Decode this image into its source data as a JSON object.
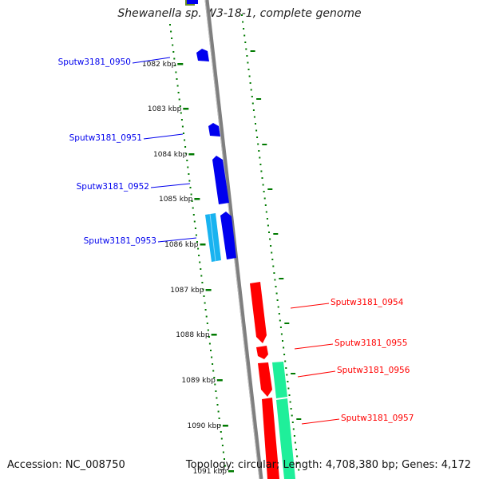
{
  "title": "Shewanella sp. W3-18-1, complete genome",
  "footer": {
    "accession": "Accession: NC_008750",
    "summary": "Topology: circular; Length: 4,708,380 bp; Genes: 4,172"
  },
  "ticks": [
    {
      "label": "1082 kbp"
    },
    {
      "label": "1083 kbp"
    },
    {
      "label": "1084 kbp"
    },
    {
      "label": "1085 kbp"
    },
    {
      "label": "1086 kbp"
    },
    {
      "label": "1087 kbp"
    },
    {
      "label": "1088 kbp"
    },
    {
      "label": "1089 kbp"
    },
    {
      "label": "1090 kbp"
    },
    {
      "label": "1091 kbp"
    }
  ],
  "genes": [
    {
      "label": "Sputw3181_0950",
      "strand": "reverse"
    },
    {
      "label": "Sputw3181_0951",
      "strand": "reverse"
    },
    {
      "label": "Sputw3181_0952",
      "strand": "reverse"
    },
    {
      "label": "Sputw3181_0953",
      "strand": "reverse"
    },
    {
      "label": "Sputw3181_0954",
      "strand": "forward"
    },
    {
      "label": "Sputw3181_0955",
      "strand": "forward"
    },
    {
      "label": "Sputw3181_0956",
      "strand": "forward"
    },
    {
      "label": "Sputw3181_0957",
      "strand": "forward"
    }
  ],
  "colors": {
    "reverse_gene": "#0000ee",
    "reverse_feature": "#19b3f0",
    "forward_gene": "#ff0000",
    "forward_feature": "#1fef9a",
    "backbone": "#7f7f7f",
    "gc_skew": "#007a00",
    "top_feature": "#6b8e23"
  }
}
